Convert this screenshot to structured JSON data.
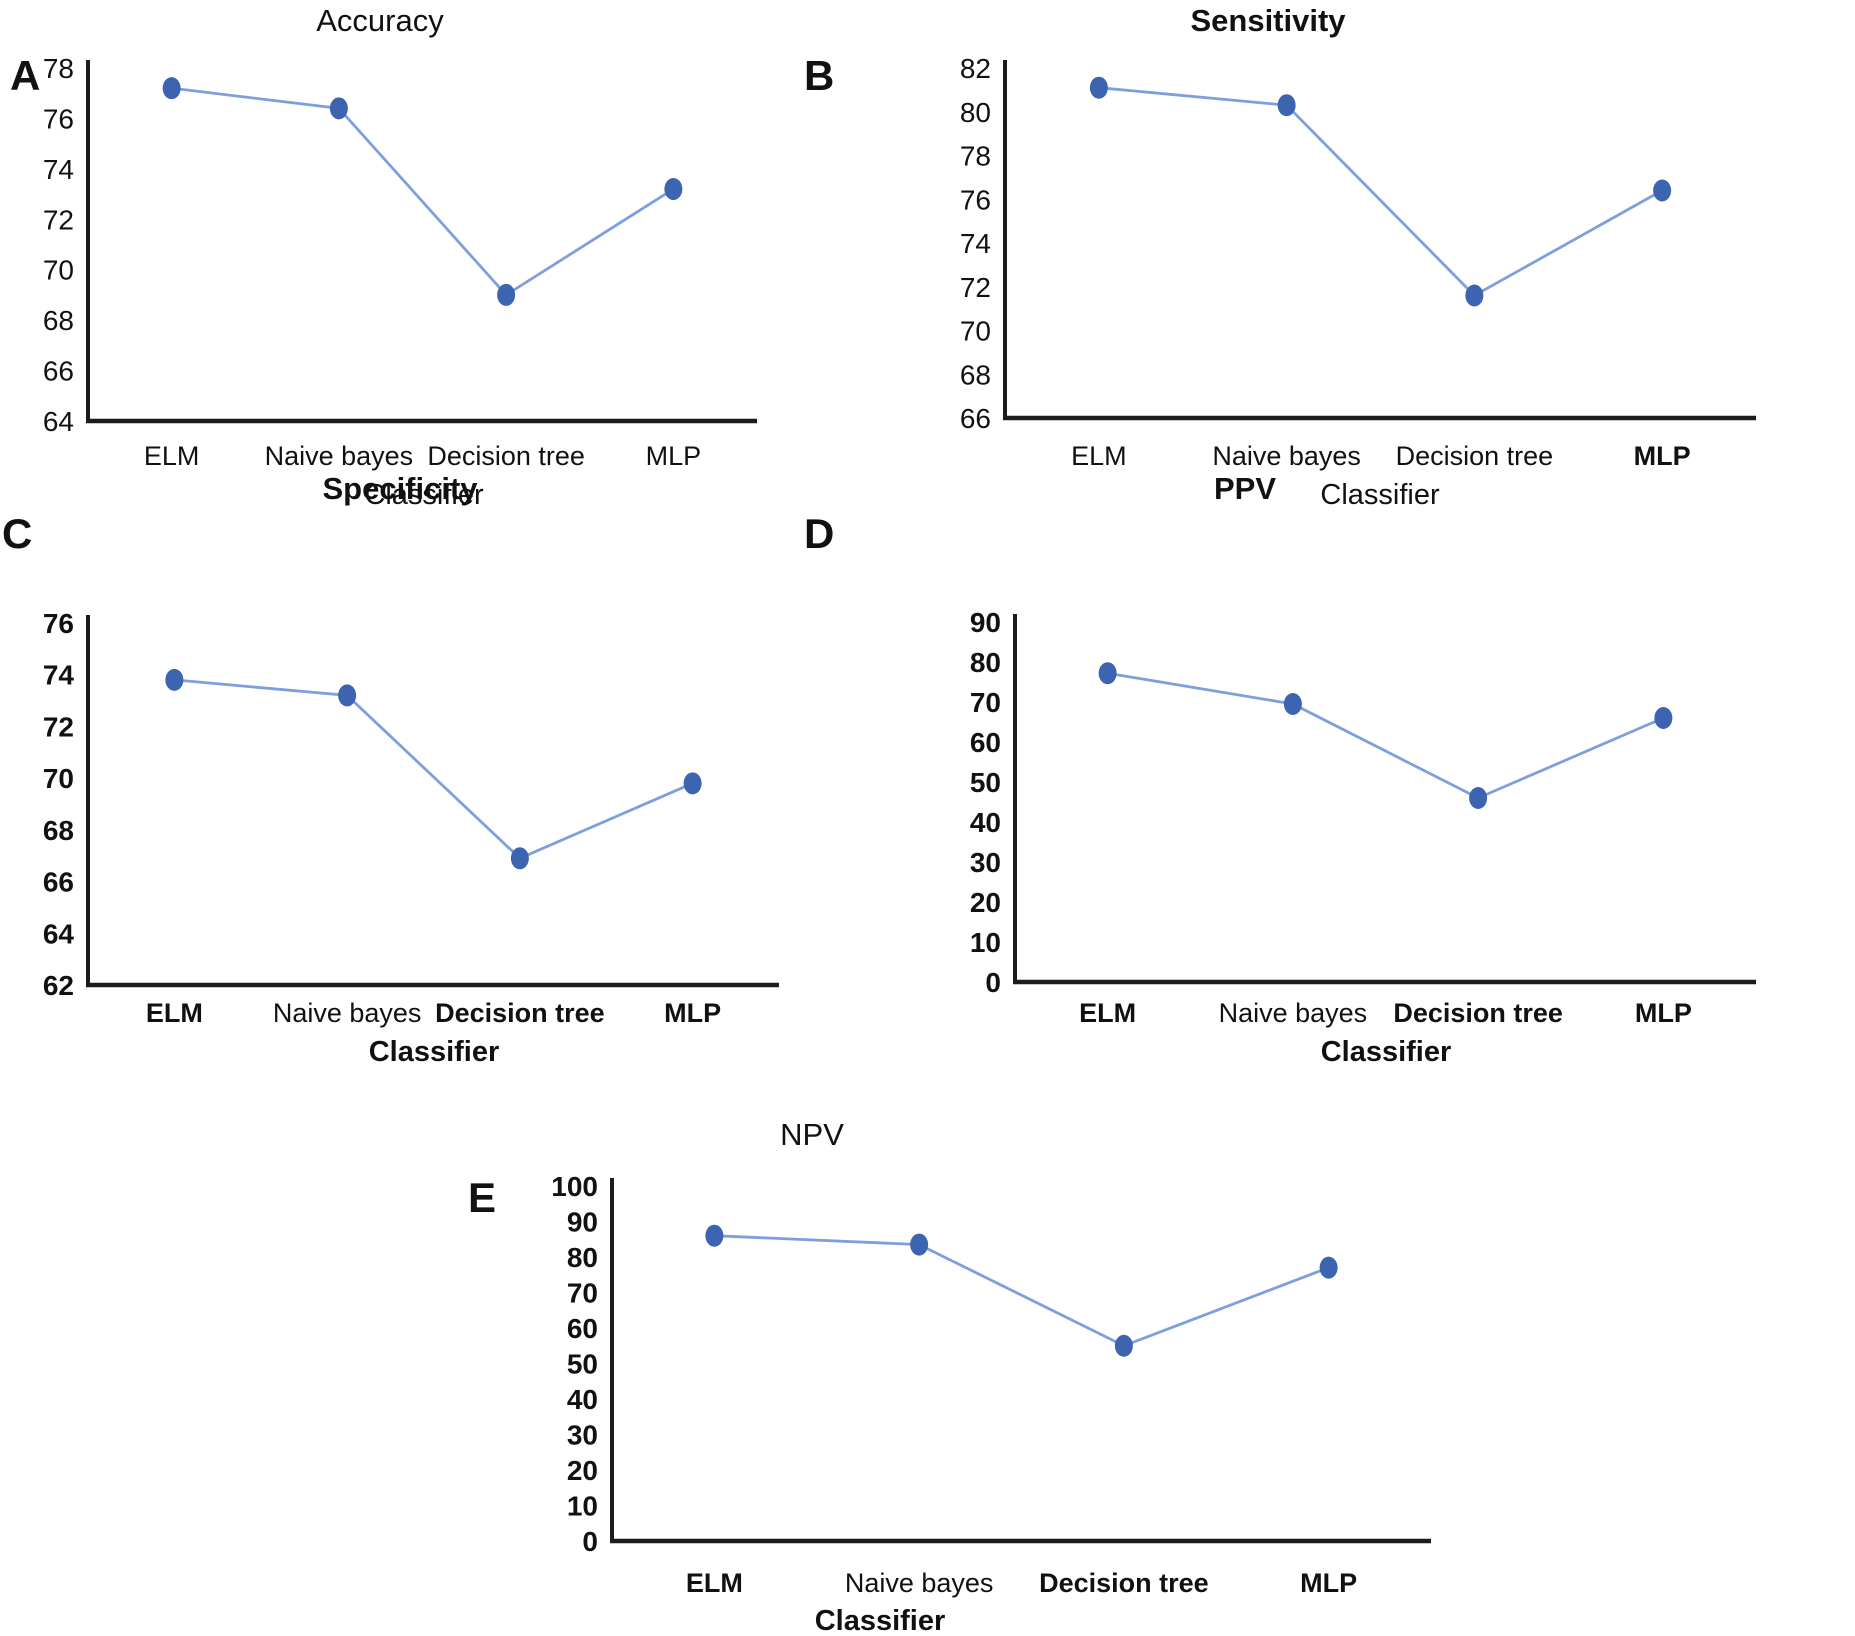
{
  "figure": {
    "description": "Five-panel line chart figure comparing classifier performance metrics",
    "colors": {
      "line": "#7e9fdd",
      "marker": "#3c64b1",
      "axis": "#1c1c1c",
      "text": "#111111",
      "background": "#ffffff"
    }
  },
  "chart_data": [
    {
      "id": "accuracy",
      "type": "line",
      "panel_letter": "A",
      "title": "Accuracy",
      "title_bold": false,
      "xlabel": "Classifier",
      "xlabel_bold": false,
      "categories": [
        "ELM",
        "Naive bayes",
        "Decision tree",
        "MLP"
      ],
      "category_bold": [
        false,
        false,
        false,
        false
      ],
      "values": [
        77.2,
        76.4,
        69.0,
        73.2
      ],
      "ylim": [
        64,
        78
      ],
      "ytick_step": 2,
      "ytick_bold": false,
      "grid": false,
      "legend": "none"
    },
    {
      "id": "sensitivity",
      "type": "line",
      "panel_letter": "B",
      "title": "Sensitivity",
      "title_bold": true,
      "xlabel": "Classifier",
      "xlabel_bold": false,
      "categories": [
        "ELM",
        "Naive bayes",
        "Decision tree",
        "MLP"
      ],
      "category_bold": [
        false,
        false,
        false,
        true
      ],
      "values": [
        81.1,
        80.3,
        71.6,
        76.4
      ],
      "ylim": [
        66,
        82
      ],
      "ytick_step": 2,
      "ytick_bold": false,
      "grid": false,
      "legend": "none"
    },
    {
      "id": "specificity",
      "type": "line",
      "panel_letter": "C",
      "title": "Specificity",
      "title_bold": true,
      "xlabel": "Classifier",
      "xlabel_bold": true,
      "categories": [
        "ELM",
        "Naive bayes",
        "Decision tree",
        "MLP"
      ],
      "category_bold": [
        true,
        false,
        true,
        true
      ],
      "values": [
        73.8,
        73.2,
        66.9,
        69.8
      ],
      "ylim": [
        62,
        76
      ],
      "ytick_step": 2,
      "ytick_bold": true,
      "grid": false,
      "legend": "none"
    },
    {
      "id": "ppv",
      "type": "line",
      "panel_letter": "D",
      "title": "PPV",
      "title_bold": true,
      "xlabel": "Classifier",
      "xlabel_bold": true,
      "categories": [
        "ELM",
        "Naive bayes",
        "Decision tree",
        "MLP"
      ],
      "category_bold": [
        true,
        false,
        true,
        true
      ],
      "values": [
        77.2,
        69.5,
        46.0,
        66.0
      ],
      "ylim": [
        0,
        90
      ],
      "ytick_step": 10,
      "ytick_bold": true,
      "grid": false,
      "legend": "none"
    },
    {
      "id": "npv",
      "type": "line",
      "panel_letter": "E",
      "title": "NPV",
      "title_bold": false,
      "xlabel": "Classifier",
      "xlabel_bold": true,
      "categories": [
        "ELM",
        "Naive bayes",
        "Decision tree",
        "MLP"
      ],
      "category_bold": [
        true,
        false,
        true,
        true
      ],
      "values": [
        86.0,
        83.5,
        55.0,
        77.0
      ],
      "ylim": [
        0,
        100
      ],
      "ytick_step": 10,
      "ytick_bold": true,
      "grid": false,
      "legend": "none"
    }
  ]
}
